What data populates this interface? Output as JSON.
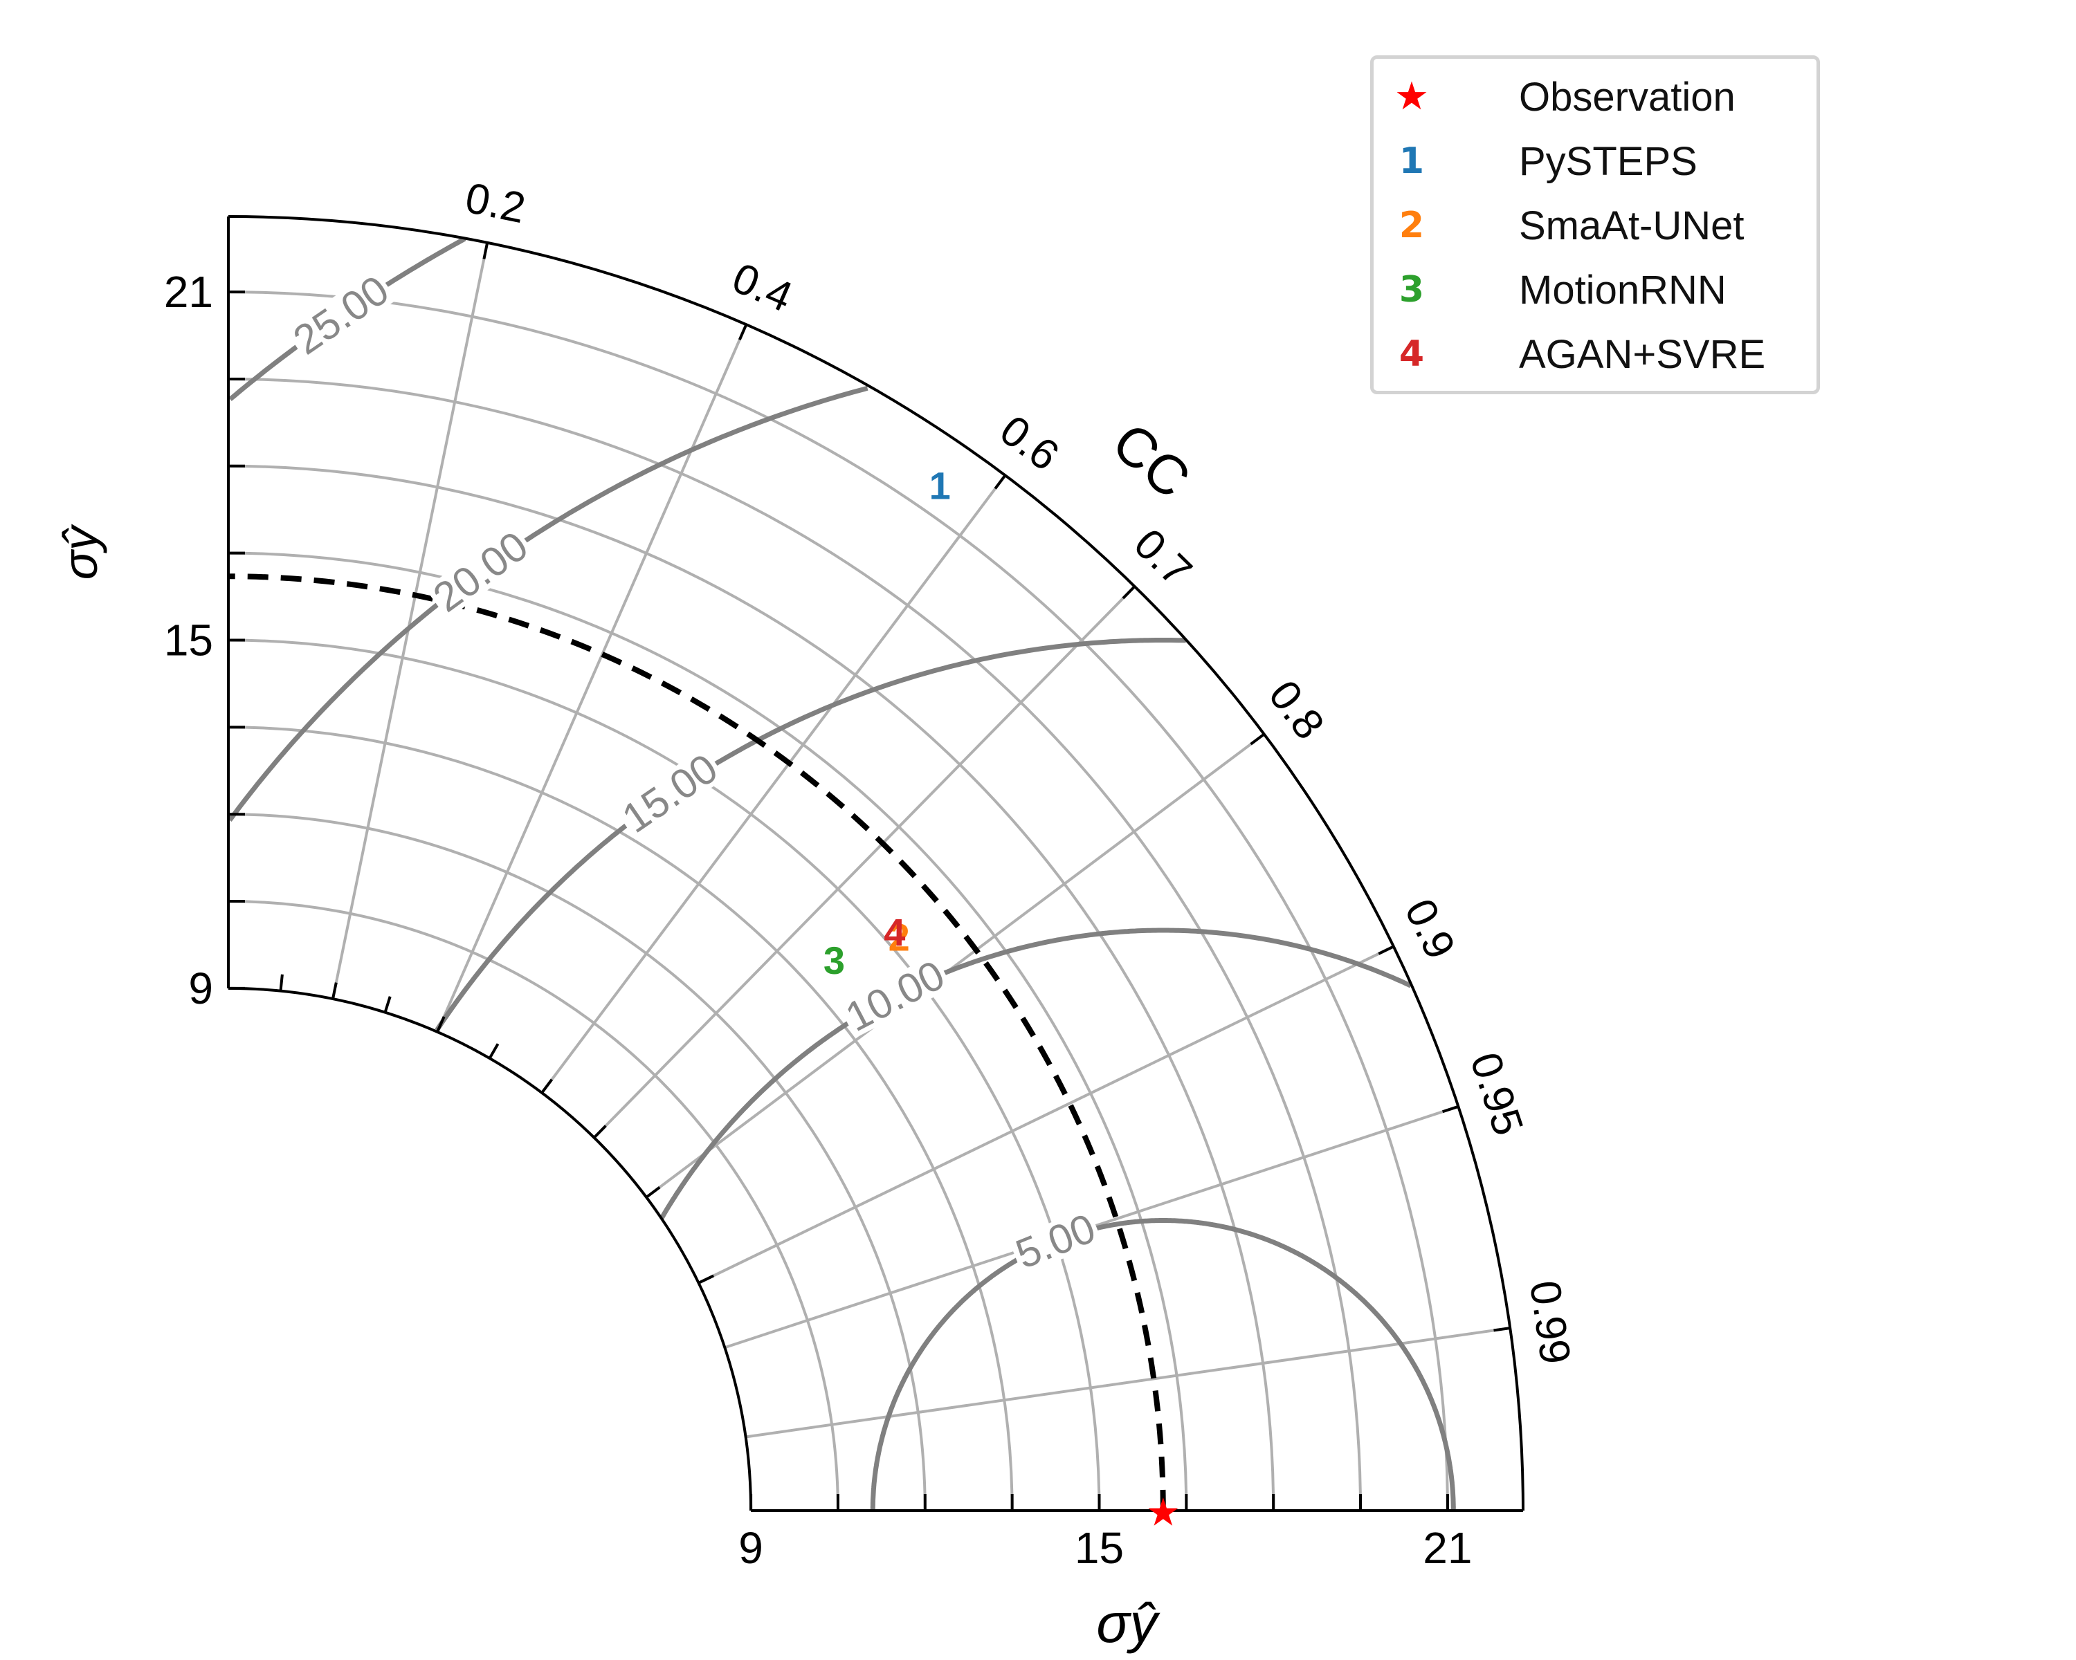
{
  "chart_data": {
    "type": "taylor-diagram",
    "correlation_axis_label": "CC",
    "correlation_ticks": [
      0.2,
      0.4,
      0.6,
      0.7,
      0.8,
      0.9,
      0.95,
      0.99
    ],
    "std_axis_label_x": "σŷ",
    "std_axis_label_y": "σŷ",
    "std_range": [
      9,
      22.3
    ],
    "std_major_ticks": [
      9,
      15,
      21
    ],
    "std_minor_tick_step": 1.5,
    "std_grid_arcs": [
      10.5,
      12,
      13.5,
      15,
      16.5,
      18,
      19.5,
      21,
      22.5
    ],
    "correlation_grid_lines": [
      0.2,
      0.4,
      0.6,
      0.7,
      0.8,
      0.9,
      0.95,
      0.99
    ],
    "rmse_contours": [
      5,
      10,
      15,
      20,
      25
    ],
    "rmse_contour_labels": [
      "5.00",
      "10.00",
      "15.00",
      "20.00",
      "25.00"
    ],
    "observation": {
      "name": "Observation",
      "std": 16.1,
      "correlation": 1.0,
      "marker": "★",
      "color": "#ff0000"
    },
    "reference_arc_std": 16.1,
    "models": [
      {
        "id": "1",
        "name": "PySTEPS",
        "std": 21.5,
        "correlation": 0.57,
        "color": "#1f77b4"
      },
      {
        "id": "2",
        "name": "SmaAt-UNet",
        "std": 15.2,
        "correlation": 0.76,
        "color": "#ff7f0e"
      },
      {
        "id": "3",
        "name": "MotionRNN",
        "std": 14.1,
        "correlation": 0.74,
        "color": "#2ca02c"
      },
      {
        "id": "4",
        "name": "AGAN+SVRE",
        "std": 15.2,
        "correlation": 0.755,
        "color": "#d62728"
      }
    ],
    "legend_position": "top-right",
    "grid": true
  },
  "legend": {
    "items": [
      {
        "marker": "★",
        "label": "Observation",
        "color": "#ff0000"
      },
      {
        "marker": "1",
        "label": "PySTEPS",
        "color": "#1f77b4"
      },
      {
        "marker": "2",
        "label": "SmaAt-UNet",
        "color": "#ff7f0e"
      },
      {
        "marker": "3",
        "label": "MotionRNN",
        "color": "#2ca02c"
      },
      {
        "marker": "4",
        "label": "AGAN+SVRE",
        "color": "#d62728"
      }
    ]
  }
}
